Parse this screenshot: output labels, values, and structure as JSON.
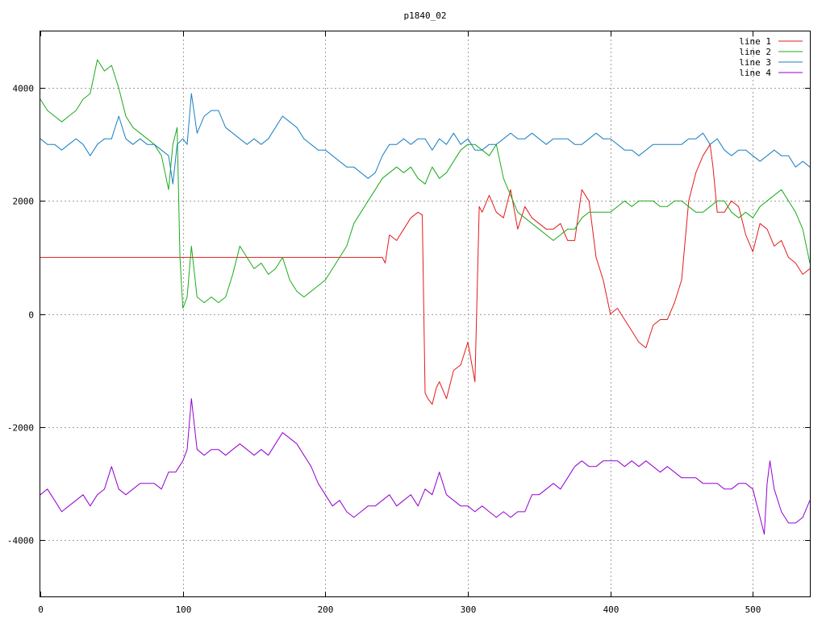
{
  "chart_data": {
    "type": "line",
    "title": "p1840_02",
    "xlim": [
      0,
      540
    ],
    "ylim": [
      -5000,
      5000
    ],
    "x_ticks": [
      0,
      100,
      200,
      300,
      400,
      500
    ],
    "y_ticks": [
      -4000,
      -2000,
      0,
      2000,
      4000
    ],
    "y_tick_labels": [
      "-4000",
      "-2000",
      "0",
      "2000",
      "4000"
    ],
    "grid": true,
    "legend_position": "top-right",
    "series": [
      {
        "name": "line 1",
        "color": "#e41a1c",
        "x": [
          0,
          240,
          242,
          245,
          250,
          255,
          260,
          265,
          268,
          270,
          272,
          275,
          278,
          280,
          285,
          290,
          295,
          300,
          305,
          308,
          310,
          315,
          320,
          325,
          330,
          335,
          340,
          345,
          350,
          355,
          360,
          365,
          370,
          375,
          380,
          385,
          390,
          395,
          400,
          405,
          410,
          415,
          420,
          425,
          430,
          435,
          440,
          445,
          450,
          455,
          460,
          465,
          470,
          472,
          475,
          480,
          485,
          490,
          495,
          500,
          505,
          510,
          515,
          520,
          525,
          530,
          535,
          540
        ],
        "y": [
          1000,
          1000,
          900,
          1400,
          1300,
          1500,
          1700,
          1800,
          1750,
          -1400,
          -1500,
          -1600,
          -1300,
          -1200,
          -1500,
          -1000,
          -900,
          -500,
          -1200,
          1900,
          1800,
          2100,
          1800,
          1700,
          2200,
          1500,
          1900,
          1700,
          1600,
          1500,
          1500,
          1600,
          1300,
          1300,
          2200,
          2000,
          1000,
          600,
          0,
          100,
          -100,
          -300,
          -500,
          -600,
          -200,
          -100,
          -100,
          200,
          600,
          2000,
          2500,
          2800,
          3000,
          2600,
          1800,
          1800,
          2000,
          1900,
          1400,
          1100,
          1600,
          1500,
          1200,
          1300,
          1000,
          900,
          700,
          800
        ]
      },
      {
        "name": "line 2",
        "color": "#1aab1a",
        "x": [
          0,
          5,
          10,
          15,
          20,
          25,
          30,
          35,
          40,
          45,
          50,
          55,
          60,
          65,
          70,
          75,
          80,
          85,
          90,
          93,
          96,
          98,
          100,
          103,
          106,
          110,
          115,
          120,
          125,
          130,
          135,
          140,
          145,
          150,
          155,
          160,
          165,
          170,
          175,
          180,
          185,
          190,
          195,
          200,
          205,
          210,
          215,
          220,
          225,
          230,
          235,
          240,
          245,
          250,
          255,
          260,
          265,
          270,
          275,
          280,
          285,
          290,
          295,
          300,
          305,
          310,
          315,
          320,
          325,
          330,
          335,
          340,
          345,
          350,
          355,
          360,
          365,
          370,
          375,
          380,
          385,
          390,
          395,
          400,
          405,
          410,
          415,
          420,
          425,
          430,
          435,
          440,
          445,
          450,
          455,
          460,
          465,
          470,
          475,
          480,
          485,
          490,
          495,
          500,
          505,
          510,
          515,
          520,
          525,
          530,
          535,
          540
        ],
        "y": [
          3800,
          3600,
          3500,
          3400,
          3500,
          3600,
          3800,
          3900,
          4500,
          4300,
          4400,
          4000,
          3500,
          3300,
          3200,
          3100,
          3000,
          2800,
          2200,
          3000,
          3300,
          1000,
          100,
          300,
          1200,
          300,
          200,
          300,
          200,
          300,
          700,
          1200,
          1000,
          800,
          900,
          700,
          800,
          1000,
          600,
          400,
          300,
          400,
          500,
          600,
          800,
          1000,
          1200,
          1600,
          1800,
          2000,
          2200,
          2400,
          2500,
          2600,
          2500,
          2600,
          2400,
          2300,
          2600,
          2400,
          2500,
          2700,
          2900,
          3000,
          3000,
          2900,
          2800,
          3000,
          2400,
          2100,
          1800,
          1700,
          1600,
          1500,
          1400,
          1300,
          1400,
          1500,
          1500,
          1700,
          1800,
          1800,
          1800,
          1800,
          1900,
          2000,
          1900,
          2000,
          2000,
          2000,
          1900,
          1900,
          2000,
          2000,
          1900,
          1800,
          1800,
          1900,
          2000,
          2000,
          1800,
          1700,
          1800,
          1700,
          1900,
          2000,
          2100,
          2200,
          2000,
          1800,
          1500,
          900
        ]
      },
      {
        "name": "line 3",
        "color": "#1a7fc4",
        "x": [
          0,
          5,
          10,
          15,
          20,
          25,
          30,
          35,
          40,
          45,
          50,
          55,
          60,
          65,
          70,
          75,
          80,
          85,
          90,
          93,
          96,
          100,
          103,
          106,
          110,
          115,
          120,
          125,
          130,
          135,
          140,
          145,
          150,
          155,
          160,
          165,
          170,
          175,
          180,
          185,
          190,
          195,
          200,
          205,
          210,
          215,
          220,
          225,
          230,
          235,
          240,
          245,
          250,
          255,
          260,
          265,
          270,
          275,
          280,
          285,
          290,
          295,
          300,
          305,
          310,
          315,
          320,
          325,
          330,
          335,
          340,
          345,
          350,
          355,
          360,
          365,
          370,
          375,
          380,
          385,
          390,
          395,
          400,
          405,
          410,
          415,
          420,
          425,
          430,
          435,
          440,
          445,
          450,
          455,
          460,
          465,
          470,
          475,
          480,
          485,
          490,
          495,
          500,
          505,
          510,
          515,
          520,
          525,
          530,
          535,
          540
        ],
        "y": [
          3100,
          3000,
          3000,
          2900,
          3000,
          3100,
          3000,
          2800,
          3000,
          3100,
          3100,
          3500,
          3100,
          3000,
          3100,
          3000,
          3000,
          2900,
          2800,
          2300,
          3000,
          3100,
          3000,
          3900,
          3200,
          3500,
          3600,
          3600,
          3300,
          3200,
          3100,
          3000,
          3100,
          3000,
          3100,
          3300,
          3500,
          3400,
          3300,
          3100,
          3000,
          2900,
          2900,
          2800,
          2700,
          2600,
          2600,
          2500,
          2400,
          2500,
          2800,
          3000,
          3000,
          3100,
          3000,
          3100,
          3100,
          2900,
          3100,
          3000,
          3200,
          3000,
          3100,
          2900,
          2900,
          3000,
          3000,
          3100,
          3200,
          3100,
          3100,
          3200,
          3100,
          3000,
          3100,
          3100,
          3100,
          3000,
          3000,
          3100,
          3200,
          3100,
          3100,
          3000,
          2900,
          2900,
          2800,
          2900,
          3000,
          3000,
          3000,
          3000,
          3000,
          3100,
          3100,
          3200,
          3000,
          3100,
          2900,
          2800,
          2900,
          2900,
          2800,
          2700,
          2800,
          2900,
          2800,
          2800,
          2600,
          2700,
          2600
        ]
      },
      {
        "name": "line 4",
        "color": "#9400d3",
        "x": [
          0,
          5,
          10,
          15,
          20,
          25,
          30,
          35,
          40,
          45,
          50,
          55,
          60,
          65,
          70,
          75,
          80,
          85,
          90,
          95,
          100,
          103,
          106,
          110,
          115,
          120,
          125,
          130,
          135,
          140,
          145,
          150,
          155,
          160,
          165,
          170,
          175,
          180,
          185,
          190,
          195,
          200,
          205,
          210,
          215,
          220,
          225,
          230,
          235,
          240,
          245,
          250,
          255,
          260,
          265,
          270,
          275,
          280,
          285,
          290,
          295,
          300,
          305,
          310,
          315,
          320,
          325,
          330,
          335,
          340,
          345,
          350,
          355,
          360,
          365,
          370,
          375,
          380,
          385,
          390,
          395,
          400,
          405,
          410,
          415,
          420,
          425,
          430,
          435,
          440,
          445,
          450,
          455,
          460,
          465,
          470,
          475,
          480,
          485,
          490,
          495,
          500,
          505,
          508,
          510,
          512,
          515,
          520,
          525,
          530,
          535,
          540
        ],
        "y": [
          -3200,
          -3100,
          -3300,
          -3500,
          -3400,
          -3300,
          -3200,
          -3400,
          -3200,
          -3100,
          -2700,
          -3100,
          -3200,
          -3100,
          -3000,
          -3000,
          -3000,
          -3100,
          -2800,
          -2800,
          -2600,
          -2400,
          -1500,
          -2400,
          -2500,
          -2400,
          -2400,
          -2500,
          -2400,
          -2300,
          -2400,
          -2500,
          -2400,
          -2500,
          -2300,
          -2100,
          -2200,
          -2300,
          -2500,
          -2700,
          -3000,
          -3200,
          -3400,
          -3300,
          -3500,
          -3600,
          -3500,
          -3400,
          -3400,
          -3300,
          -3200,
          -3400,
          -3300,
          -3200,
          -3400,
          -3100,
          -3200,
          -2800,
          -3200,
          -3300,
          -3400,
          -3400,
          -3500,
          -3400,
          -3500,
          -3600,
          -3500,
          -3600,
          -3500,
          -3500,
          -3200,
          -3200,
          -3100,
          -3000,
          -3100,
          -2900,
          -2700,
          -2600,
          -2700,
          -2700,
          -2600,
          -2600,
          -2600,
          -2700,
          -2600,
          -2700,
          -2600,
          -2700,
          -2800,
          -2700,
          -2800,
          -2900,
          -2900,
          -2900,
          -3000,
          -3000,
          -3000,
          -3100,
          -3100,
          -3000,
          -3000,
          -3100,
          -3600,
          -3900,
          -3000,
          -2600,
          -3100,
          -3500,
          -3700,
          -3700,
          -3600,
          -3300
        ]
      }
    ]
  }
}
